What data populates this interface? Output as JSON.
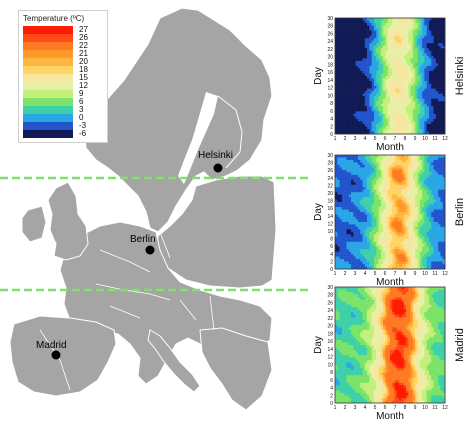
{
  "legend": {
    "title": "Temperature (ºC)",
    "stops": [
      {
        "label": "27",
        "color": "#ff1a00"
      },
      {
        "label": "26",
        "color": "#ff4a1a"
      },
      {
        "label": "22",
        "color": "#ff7a22"
      },
      {
        "label": "21",
        "color": "#ff9a2a"
      },
      {
        "label": "20",
        "color": "#ffb640"
      },
      {
        "label": "18",
        "color": "#ffd466"
      },
      {
        "label": "15",
        "color": "#f7e6a0"
      },
      {
        "label": "12",
        "color": "#e8f0a8"
      },
      {
        "label": "9",
        "color": "#c2f07a"
      },
      {
        "label": "6",
        "color": "#7be36a"
      },
      {
        "label": "3",
        "color": "#3ed0a8"
      },
      {
        "label": "0",
        "color": "#2aa6e6"
      },
      {
        "label": "-3",
        "color": "#2255cc"
      },
      {
        "label": "-6",
        "color": "#111a55"
      }
    ]
  },
  "map": {
    "land_color": "#a5a5a5",
    "border_color": "#ffffff",
    "sea_color": "#ffffff",
    "guide_color": "#7fe06a",
    "cities": [
      {
        "name": "Helsinki"
      },
      {
        "name": "Berlin"
      },
      {
        "name": "Madrid"
      }
    ]
  },
  "panels": [
    {
      "city": "Helsinki",
      "ylabel": "Day",
      "xlabel": "Month",
      "yticks": [
        "0",
        "2",
        "4",
        "6",
        "8",
        "10",
        "12",
        "14",
        "16",
        "18",
        "20",
        "22",
        "24",
        "26",
        "28",
        "30"
      ],
      "xticks": [
        "1",
        "2",
        "3",
        "4",
        "5",
        "6",
        "7",
        "8",
        "9",
        "10",
        "11",
        "12"
      ]
    },
    {
      "city": "Berlin",
      "ylabel": "Day",
      "xlabel": "Month",
      "yticks": [
        "0",
        "2",
        "4",
        "6",
        "8",
        "10",
        "12",
        "14",
        "16",
        "18",
        "20",
        "22",
        "24",
        "26",
        "28",
        "30"
      ],
      "xticks": [
        "1",
        "2",
        "3",
        "4",
        "5",
        "6",
        "7",
        "8",
        "9",
        "10",
        "11",
        "12"
      ]
    },
    {
      "city": "Madrid",
      "ylabel": "Day",
      "xlabel": "Month",
      "yticks": [
        "0",
        "2",
        "4",
        "6",
        "8",
        "10",
        "12",
        "14",
        "16",
        "18",
        "20",
        "22",
        "24",
        "26",
        "28",
        "30"
      ],
      "xticks": [
        "1",
        "2",
        "3",
        "4",
        "5",
        "6",
        "7",
        "8",
        "9",
        "10",
        "11",
        "12"
      ]
    }
  ]
}
